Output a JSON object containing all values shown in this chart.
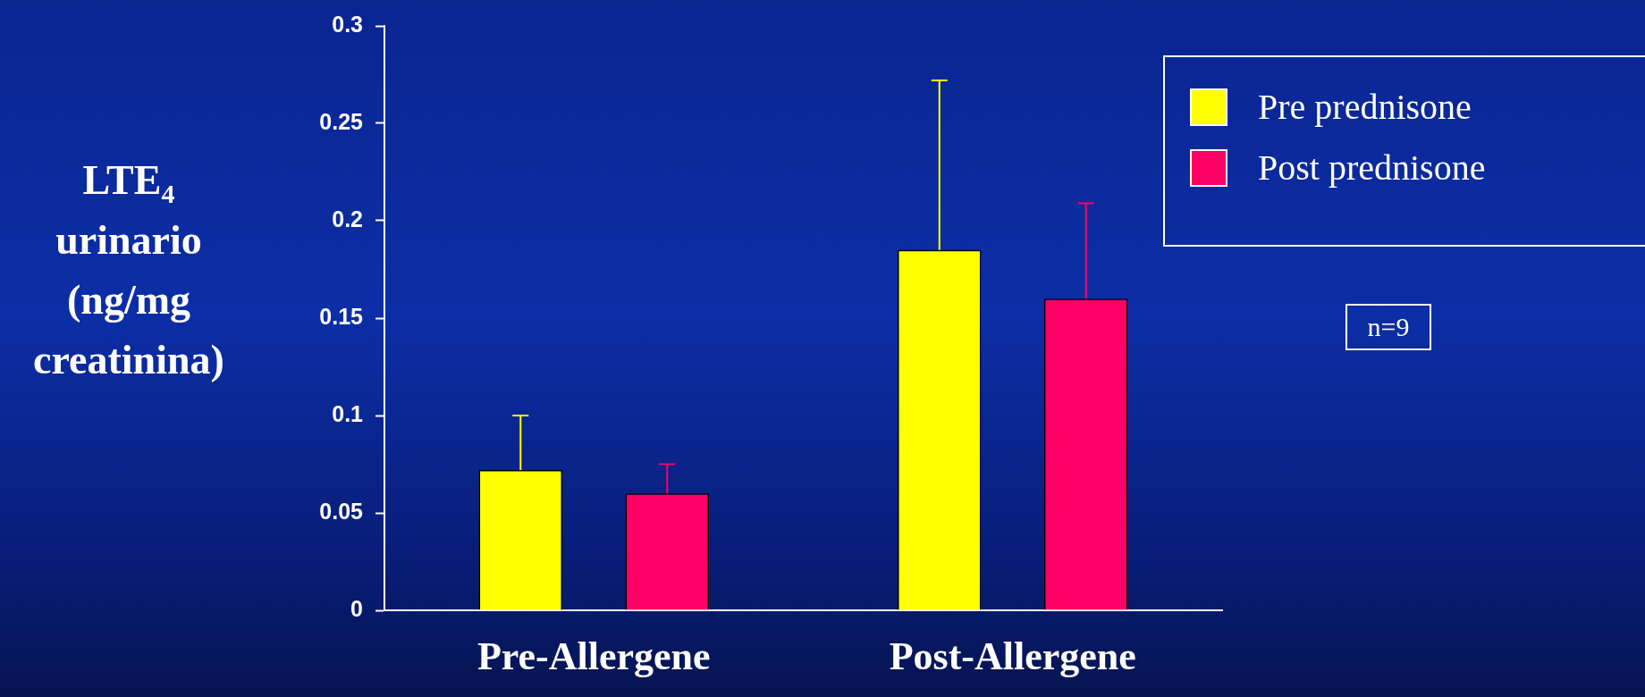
{
  "chart_data": {
    "type": "bar",
    "ylabel": "LTE$_{4}$ urinario (ng/mg creatinina)",
    "categories": [
      "Pre-Allergene",
      "Post-Allergene"
    ],
    "series": [
      {
        "name": "Pre prednisone",
        "color": "#ffff00",
        "values": [
          0.072,
          0.185
        ],
        "errors": [
          [
            0.072,
            0.1
          ],
          [
            0.185,
            0.272
          ]
        ]
      },
      {
        "name": "Post prednisone",
        "color": "#ff0066",
        "values": [
          0.06,
          0.16
        ],
        "errors": [
          [
            0.06,
            0.075
          ],
          [
            0.16,
            0.209
          ]
        ]
      }
    ],
    "ylim": [
      0,
      0.3
    ],
    "yticks": [
      0,
      0.05,
      0.1,
      0.15,
      0.2,
      0.25,
      0.3
    ],
    "grid": false,
    "legend": "top right",
    "annotations": [
      "n=9"
    ]
  }
}
